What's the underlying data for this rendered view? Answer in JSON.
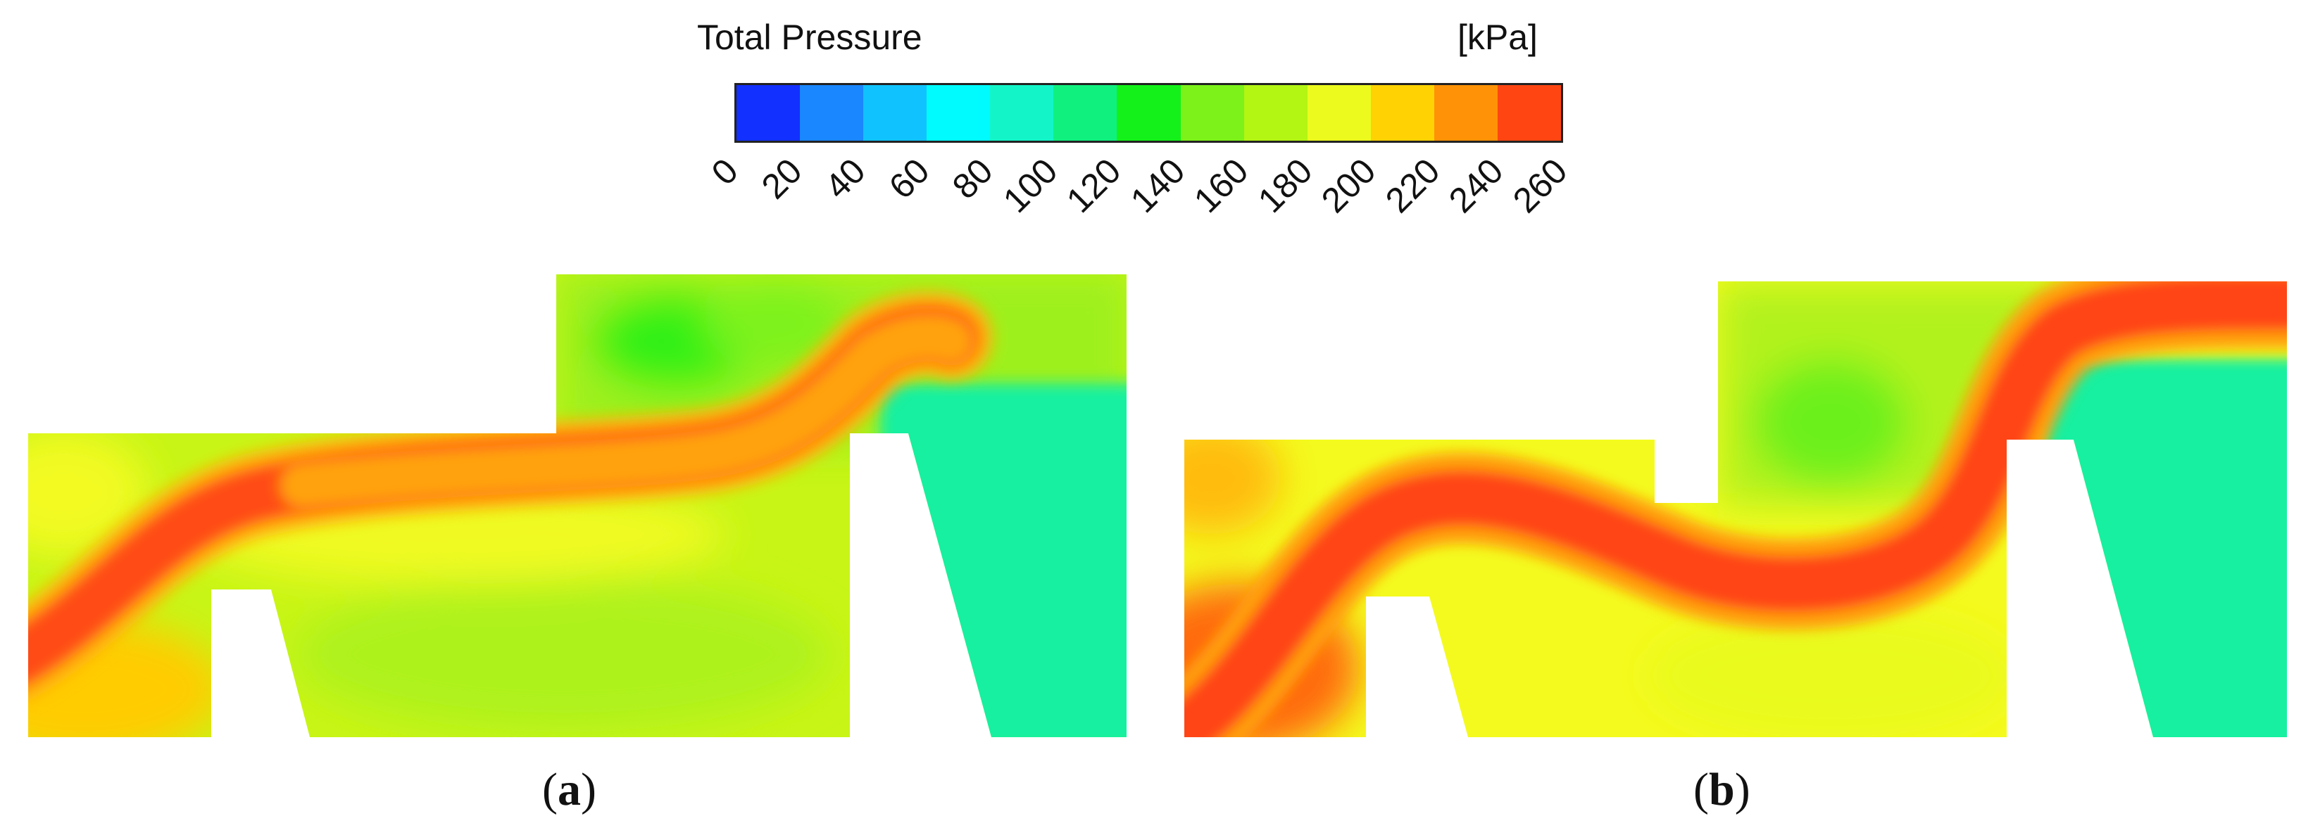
{
  "legend": {
    "title": "Total Pressure",
    "unit": "[kPa]",
    "ticks": [
      "0",
      "20",
      "40",
      "60",
      "80",
      "100",
      "120",
      "140",
      "160",
      "180",
      "200",
      "220",
      "240",
      "260"
    ],
    "colors": [
      "#1230ff",
      "#1a86ff",
      "#10c3ff",
      "#00fbff",
      "#13f5c9",
      "#10f07f",
      "#14f11a",
      "#7df21a",
      "#b3f513",
      "#ecfa1e",
      "#ffd203",
      "#ff9206",
      "#ff4612"
    ]
  },
  "panels": [
    {
      "label_open": "(",
      "label_letter": "a",
      "label_close": ")"
    },
    {
      "label_open": "(",
      "label_letter": "b",
      "label_close": ")"
    }
  ]
}
